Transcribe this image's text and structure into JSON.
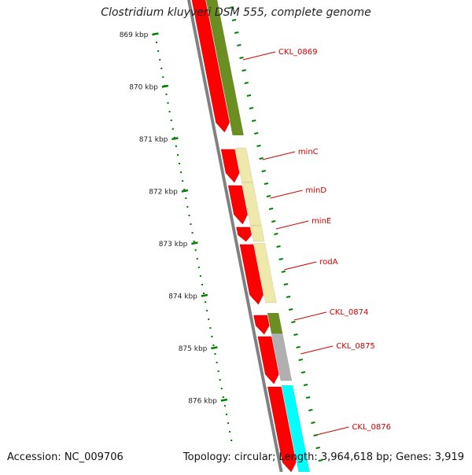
{
  "title": "Clostridium kluyveri DSM 555, complete genome",
  "accession": "Accession: NC_009706",
  "topology": "Topology: circular; Length: 3,964,618 bp; Genes: 3,919",
  "colors": {
    "cds_forward": "#ff0000",
    "axis_ticks": "#008000",
    "label": "#d00000",
    "backbone": "#808080",
    "cog_olive": "#6b8e23",
    "cog_khaki": "#eee8aa",
    "cog_gray": "#b0b0b0",
    "cog_cyan": "#00ffff"
  },
  "ruler": {
    "ticks": [
      "869 kbp",
      "870 kbp",
      "871 kbp",
      "872 kbp",
      "873 kbp",
      "874 kbp",
      "875 kbp",
      "876 kbp"
    ]
  },
  "genes": [
    {
      "label": "CKL_0869",
      "cog_color": "#6b8e23"
    },
    {
      "label": "minC",
      "cog_color": "#eee8aa"
    },
    {
      "label": "minD",
      "cog_color": "#eee8aa"
    },
    {
      "label": "minE",
      "cog_color": "#eee8aa"
    },
    {
      "label": "rodA",
      "cog_color": "#eee8aa"
    },
    {
      "label": "CKL_0874",
      "cog_color": "#6b8e23"
    },
    {
      "label": "CKL_0875",
      "cog_color": "#b0b0b0"
    },
    {
      "label": "CKL_0876",
      "cog_color": "#00ffff"
    }
  ]
}
